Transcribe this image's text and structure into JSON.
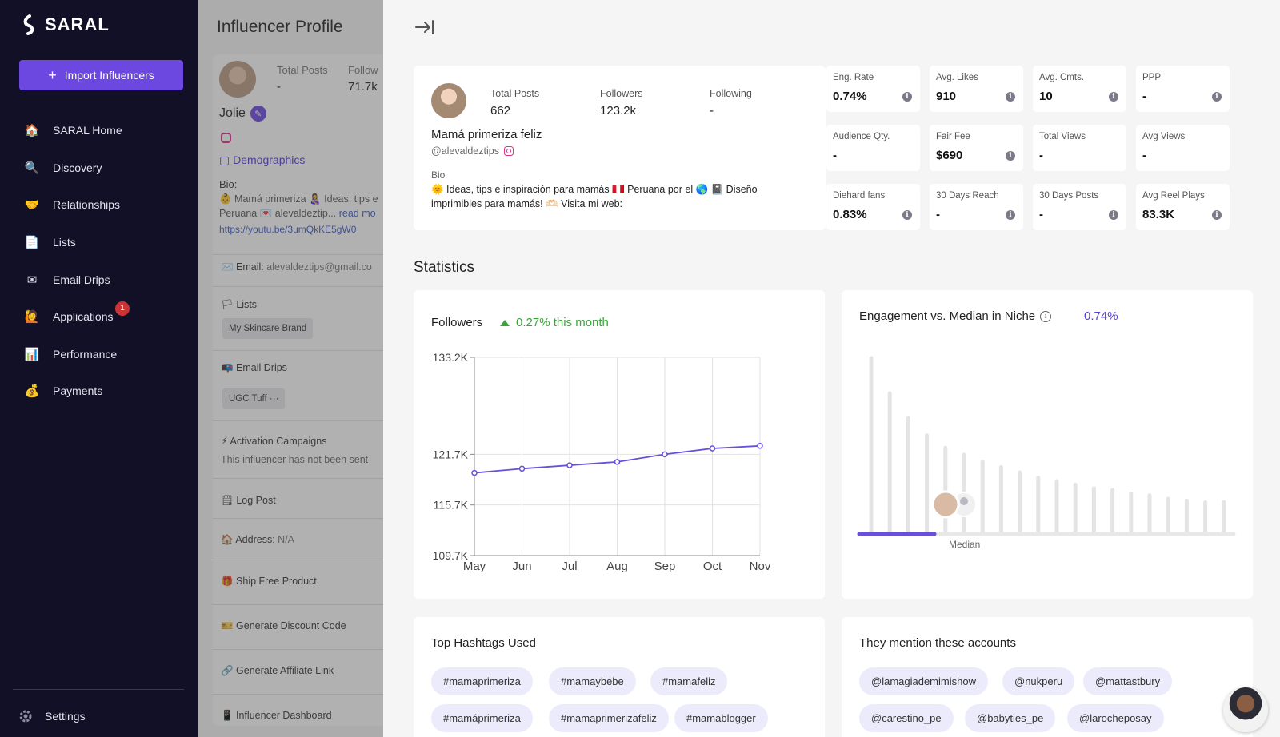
{
  "nav": {
    "brand": "SARAL",
    "import_button": "Import Influencers",
    "items": [
      {
        "label": "SARAL Home",
        "icon": "house-icon",
        "glyph": "🏠"
      },
      {
        "label": "Discovery",
        "icon": "magnifier-icon",
        "glyph": "🔍"
      },
      {
        "label": "Relationships",
        "icon": "handshake-icon",
        "glyph": "🤝"
      },
      {
        "label": "Lists",
        "icon": "document-icon",
        "glyph": "📄"
      },
      {
        "label": "Email Drips",
        "icon": "envelope-icon",
        "glyph": "✉"
      },
      {
        "label": "Applications",
        "icon": "applications-icon",
        "glyph": "🙋",
        "badge": "1"
      },
      {
        "label": "Performance",
        "icon": "bar-chart-icon",
        "glyph": "📊"
      },
      {
        "label": "Payments",
        "icon": "money-bag-icon",
        "glyph": "💰"
      }
    ],
    "settings": "Settings"
  },
  "background_profile": {
    "title": "Influencer Profile",
    "total_posts_label": "Total Posts",
    "total_posts_value": "-",
    "followers_label": "Follow",
    "followers_value": "71.7k",
    "name": "Jolie",
    "demographics": "Demographics",
    "bio_label": "Bio:",
    "bio_text": "👶 Mamá primeriza 👩‍🍼 Ideas, tips e Peruana 💌 alevaldeztip...",
    "read_more": "read mo",
    "link": "https://youtu.be/3umQkKE5gW0",
    "email_label": "✉️ Email:",
    "email_value": "alevaldeztips@gmail.co",
    "lists_label": "🏳 Lists",
    "lists_chip": "My Skincare Brand",
    "drips_label": "📭 Email Drips",
    "drips_chip": "UGC Tuff  ···",
    "activation_label": "⚡ Activation Campaigns",
    "activation_text": "This influencer has not been sent",
    "log_post": "🗒 Log Post",
    "address_label": "🏠 Address:",
    "address_value": "N/A",
    "ship": "🎁 Ship Free Product",
    "discount": "🎫 Generate Discount Code",
    "affiliate": "🔗 Generate Affiliate Link",
    "dashboard": "📱 Influencer Dashboard"
  },
  "profile": {
    "total_posts_label": "Total Posts",
    "total_posts": "662",
    "followers_label": "Followers",
    "followers": "123.2k",
    "following_label": "Following",
    "following": "-",
    "name": "Mamá primeriza feliz",
    "handle": "@alevaldeztips",
    "bio_label": "Bio",
    "bio": "🌞 Ideas, tips e inspiración para mamás 🇵🇪 Peruana por el 🌎 📓 Diseño imprimibles para mamás! 🫶🏻 Visita mi web:"
  },
  "metrics": [
    {
      "label": "Eng. Rate",
      "value": "0.74%",
      "info": true
    },
    {
      "label": "Avg. Likes",
      "value": "910",
      "info": true
    },
    {
      "label": "Avg. Cmts.",
      "value": "10",
      "info": true
    },
    {
      "label": "PPP",
      "value": "-",
      "info": true
    },
    {
      "label": "Audience Qty.",
      "value": "-",
      "info": false
    },
    {
      "label": "Fair Fee",
      "value": "$690",
      "info": true
    },
    {
      "label": "Total Views",
      "value": "-",
      "info": false
    },
    {
      "label": "Avg Views",
      "value": "-",
      "info": false
    },
    {
      "label": "Diehard fans",
      "value": "0.83%",
      "info": true
    },
    {
      "label": "30 Days Reach",
      "value": "-",
      "info": true
    },
    {
      "label": "30 Days Posts",
      "value": "-",
      "info": true
    },
    {
      "label": "Avg Reel Plays",
      "value": "83.3K",
      "info": true
    }
  ],
  "statistics": {
    "title": "Statistics",
    "followers_title": "Followers",
    "followers_growth": "0.27% this month",
    "engagement_title": "Engagement vs. Median in Niche",
    "engagement_value": "0.74%",
    "median_label": "Median"
  },
  "chart_data": [
    {
      "type": "line",
      "title": "Followers",
      "x": [
        "May",
        "Jun",
        "Jul",
        "Aug",
        "Sep",
        "Oct",
        "Nov"
      ],
      "series": [
        {
          "values": [
            119500,
            120000,
            120400,
            120800,
            121700,
            122400,
            122700
          ]
        }
      ],
      "yticks": [
        "133.2K",
        "121.7K",
        "115.7K",
        "109.7K"
      ],
      "ylim": [
        109700,
        133200
      ],
      "grid": true,
      "color": "#6a4fd8"
    },
    {
      "type": "bar",
      "title": "Engagement vs. Median in Niche",
      "values": [
        1.0,
        0.8,
        0.66,
        0.56,
        0.49,
        0.45,
        0.41,
        0.38,
        0.35,
        0.32,
        0.3,
        0.28,
        0.26,
        0.25,
        0.23,
        0.22,
        0.2,
        0.19,
        0.18,
        0.18
      ],
      "highlight_value": "0.74%",
      "median_index": 5,
      "color": "#e4e4e4",
      "accent": "#6a4fd8"
    }
  ],
  "hashtags": {
    "title": "Top Hashtags Used",
    "items": [
      "#mamaprimeriza",
      "#mamaybebe",
      "#mamafeliz",
      "#mamáprimeriza",
      "#mamaprimerizafeliz",
      "#mamablogger"
    ]
  },
  "mentions": {
    "title": "They mention these accounts",
    "items": [
      "@lamagiademimishow",
      "@nukperu",
      "@mattastbury",
      "@carestino_pe",
      "@babyties_pe",
      "@larocheposay"
    ]
  }
}
